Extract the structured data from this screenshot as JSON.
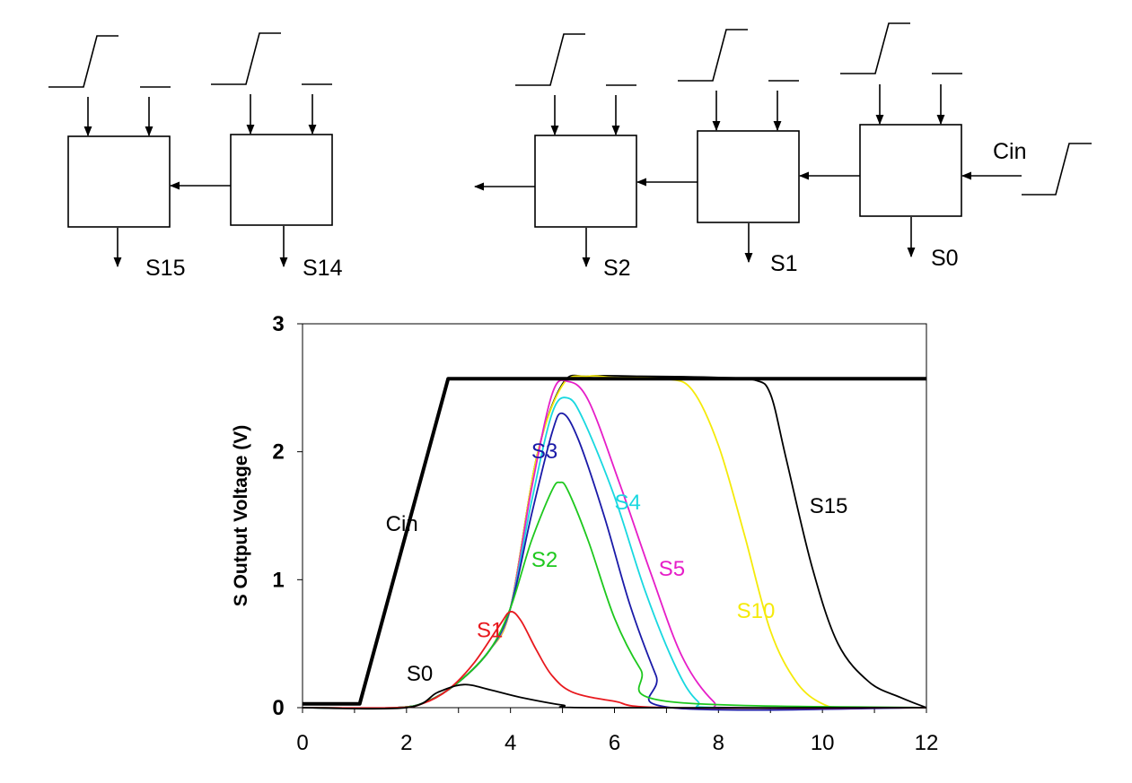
{
  "diagram": {
    "left_group": [
      {
        "label": "S15"
      },
      {
        "label": "S14"
      }
    ],
    "right_group": [
      {
        "label": "S2"
      },
      {
        "label": "S1"
      },
      {
        "label": "S0"
      }
    ],
    "carry_in_label": "Cin"
  },
  "colors": {
    "Cin": "#000000",
    "S0": "#000000",
    "S1": "#e8191e",
    "S2": "#1ec81e",
    "S3": "#1a1aa8",
    "S4": "#19d8e0",
    "S5": "#e61ec8",
    "S10": "#f5ea0a",
    "S15": "#000000"
  },
  "chart_data": {
    "type": "line",
    "title": "",
    "xlabel": "",
    "ylabel": "S Output Voltage (V)",
    "xlim": [
      0,
      12
    ],
    "ylim": [
      0,
      3
    ],
    "xticks": [
      "0",
      "2",
      "4",
      "6",
      "8",
      "10",
      "12"
    ],
    "yticks": [
      "0",
      "1",
      "2",
      "3"
    ],
    "grid": false,
    "legend": "none",
    "series": [
      {
        "name": "Cin",
        "points": [
          [
            0,
            0.03
          ],
          [
            1.1,
            0.03
          ],
          [
            2.8,
            2.57
          ],
          [
            12,
            2.57
          ]
        ]
      },
      {
        "name": "S0",
        "points": [
          [
            0,
            0
          ],
          [
            2,
            0
          ],
          [
            2.6,
            0.12
          ],
          [
            3.1,
            0.18
          ],
          [
            3.6,
            0.14
          ],
          [
            4.2,
            0.08
          ],
          [
            5,
            0.02
          ],
          [
            5.6,
            0
          ],
          [
            12,
            0
          ]
        ]
      },
      {
        "name": "S1",
        "points": [
          [
            0,
            0
          ],
          [
            1.8,
            0
          ],
          [
            2.3,
            0.03
          ],
          [
            2.8,
            0.14
          ],
          [
            3.3,
            0.35
          ],
          [
            3.8,
            0.65
          ],
          [
            4,
            0.75
          ],
          [
            4.2,
            0.68
          ],
          [
            4.5,
            0.45
          ],
          [
            4.8,
            0.25
          ],
          [
            5.2,
            0.12
          ],
          [
            6,
            0.05
          ],
          [
            7,
            0
          ],
          [
            12,
            0
          ]
        ]
      },
      {
        "name": "S2",
        "points": [
          [
            0,
            0
          ],
          [
            1.8,
            0
          ],
          [
            2.4,
            0.05
          ],
          [
            3,
            0.2
          ],
          [
            3.6,
            0.45
          ],
          [
            4,
            0.78
          ],
          [
            4.4,
            1.3
          ],
          [
            4.8,
            1.7
          ],
          [
            4.95,
            1.76
          ],
          [
            5.1,
            1.7
          ],
          [
            5.5,
            1.3
          ],
          [
            6,
            0.7
          ],
          [
            6.5,
            0.3
          ],
          [
            7,
            0.05
          ],
          [
            12,
            0
          ]
        ]
      },
      {
        "name": "S3",
        "points": [
          [
            0,
            0
          ],
          [
            1.8,
            0
          ],
          [
            2.4,
            0.05
          ],
          [
            3,
            0.2
          ],
          [
            3.6,
            0.45
          ],
          [
            4,
            0.78
          ],
          [
            4.4,
            1.5
          ],
          [
            4.8,
            2.15
          ],
          [
            5,
            2.3
          ],
          [
            5.3,
            2.1
          ],
          [
            5.8,
            1.5
          ],
          [
            6.3,
            0.8
          ],
          [
            6.8,
            0.25
          ],
          [
            7.1,
            0
          ],
          [
            12,
            0
          ]
        ]
      },
      {
        "name": "S4",
        "points": [
          [
            0,
            0
          ],
          [
            1.8,
            0
          ],
          [
            2.4,
            0.05
          ],
          [
            3,
            0.2
          ],
          [
            3.6,
            0.45
          ],
          [
            4,
            0.78
          ],
          [
            4.4,
            1.6
          ],
          [
            4.8,
            2.3
          ],
          [
            5.1,
            2.42
          ],
          [
            5.4,
            2.25
          ],
          [
            6,
            1.65
          ],
          [
            6.6,
            0.9
          ],
          [
            7.2,
            0.3
          ],
          [
            7.6,
            0.05
          ],
          [
            8,
            0
          ],
          [
            12,
            0
          ]
        ]
      },
      {
        "name": "S5",
        "points": [
          [
            0,
            0
          ],
          [
            1.8,
            0
          ],
          [
            2.4,
            0.05
          ],
          [
            3,
            0.2
          ],
          [
            3.6,
            0.45
          ],
          [
            4,
            0.78
          ],
          [
            4.4,
            1.7
          ],
          [
            4.8,
            2.45
          ],
          [
            5.1,
            2.55
          ],
          [
            5.5,
            2.4
          ],
          [
            6.1,
            1.75
          ],
          [
            6.7,
            1.05
          ],
          [
            7.3,
            0.4
          ],
          [
            7.9,
            0.05
          ],
          [
            8.3,
            0
          ],
          [
            12,
            0
          ]
        ]
      },
      {
        "name": "S10",
        "points": [
          [
            0,
            0
          ],
          [
            1.8,
            0
          ],
          [
            2.4,
            0.05
          ],
          [
            3,
            0.2
          ],
          [
            3.6,
            0.45
          ],
          [
            4,
            0.78
          ],
          [
            4.5,
            1.95
          ],
          [
            5,
            2.52
          ],
          [
            5.5,
            2.59
          ],
          [
            6,
            2.58
          ],
          [
            7,
            2.57
          ],
          [
            7.5,
            2.48
          ],
          [
            8,
            2.05
          ],
          [
            8.5,
            1.35
          ],
          [
            9,
            0.6
          ],
          [
            9.5,
            0.2
          ],
          [
            10,
            0.03
          ],
          [
            10.5,
            0
          ],
          [
            12,
            0
          ]
        ]
      },
      {
        "name": "S15",
        "points": [
          [
            0,
            0
          ],
          [
            1.8,
            0
          ],
          [
            2.4,
            0.05
          ],
          [
            3,
            0.2
          ],
          [
            3.6,
            0.45
          ],
          [
            4,
            0.78
          ],
          [
            4.5,
            1.95
          ],
          [
            5,
            2.53
          ],
          [
            5.5,
            2.59
          ],
          [
            6.5,
            2.59
          ],
          [
            8,
            2.58
          ],
          [
            8.7,
            2.56
          ],
          [
            9,
            2.45
          ],
          [
            9.3,
            1.95
          ],
          [
            9.8,
            1.1
          ],
          [
            10.3,
            0.5
          ],
          [
            10.9,
            0.2
          ],
          [
            11.5,
            0.08
          ],
          [
            12,
            0
          ]
        ]
      }
    ],
    "curve_labels": [
      {
        "text": "Cin",
        "series": "Cin",
        "at": [
          1.6,
          1.38
        ]
      },
      {
        "text": "S0",
        "series": "S0",
        "at": [
          2.0,
          0.21
        ]
      },
      {
        "text": "S1",
        "series": "S1",
        "at": [
          3.35,
          0.55
        ]
      },
      {
        "text": "S2",
        "series": "S2",
        "at": [
          4.4,
          1.1
        ]
      },
      {
        "text": "S3",
        "series": "S3",
        "at": [
          4.4,
          1.95
        ]
      },
      {
        "text": "S4",
        "series": "S4",
        "at": [
          6.0,
          1.55
        ]
      },
      {
        "text": "S5",
        "series": "S5",
        "at": [
          6.85,
          1.03
        ]
      },
      {
        "text": "S10",
        "series": "S10",
        "at": [
          8.35,
          0.7
        ]
      },
      {
        "text": "S15",
        "series": "S15",
        "at": [
          9.75,
          1.52
        ]
      }
    ]
  }
}
